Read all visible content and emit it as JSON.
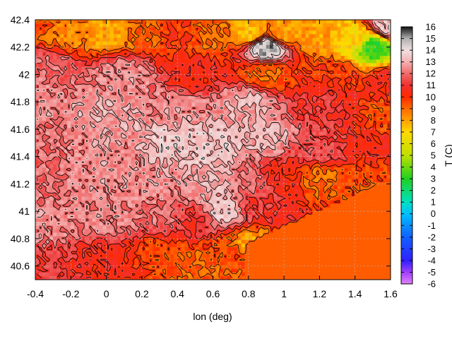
{
  "chart_data": {
    "type": "heatmap",
    "title": "",
    "xlabel": "lon (deg)",
    "colorbar_label": "T (C)",
    "xlim": [
      -0.4,
      1.6
    ],
    "ylim": [
      40.5,
      42.4
    ],
    "clim": [
      -6,
      16
    ],
    "x_ticks": [
      "-0.4",
      "-0.2",
      "0",
      "0.2",
      "0.4",
      "0.6",
      "0.8",
      "1",
      "1.2",
      "1.4",
      "1.6"
    ],
    "y_ticks": [
      "40.6",
      "40.8",
      "41",
      "41.2",
      "41.4",
      "41.6",
      "41.8",
      "42",
      "42.2",
      "42.4"
    ],
    "colorbar_ticks": [
      "16",
      "15",
      "14",
      "13",
      "12",
      "11",
      "10",
      "9",
      "8",
      "7",
      "6",
      "5",
      "4",
      "3",
      "2",
      "1",
      "0",
      "-1",
      "-2",
      "-3",
      "-4",
      "-5",
      "-6"
    ],
    "colormap": [
      {
        "t": -6,
        "color": "#e080ff"
      },
      {
        "t": -5,
        "color": "#a040ff"
      },
      {
        "t": -4,
        "color": "#3020ff"
      },
      {
        "t": -2,
        "color": "#1060ff"
      },
      {
        "t": 0,
        "color": "#00c0ff"
      },
      {
        "t": 1,
        "color": "#00e0c0"
      },
      {
        "t": 3,
        "color": "#20d020"
      },
      {
        "t": 5,
        "color": "#c0e000"
      },
      {
        "t": 7,
        "color": "#ffd800"
      },
      {
        "t": 8,
        "color": "#ffa000"
      },
      {
        "t": 9,
        "color": "#ff6a00"
      },
      {
        "t": 10,
        "color": "#ff2a00"
      },
      {
        "t": 11,
        "color": "#f03030"
      },
      {
        "t": 12,
        "color": "#f06a6a"
      },
      {
        "t": 13,
        "color": "#f5b0b0"
      },
      {
        "t": 14,
        "color": "#f0e0e0"
      },
      {
        "t": 15,
        "color": "#b0b0b0"
      },
      {
        "t": 16,
        "color": "#101010"
      }
    ],
    "grid": true,
    "sea_value": 9.2,
    "isotherm_levels": [
      9,
      10,
      11,
      12,
      13,
      14
    ],
    "temperature_field": [
      {
        "lon": -0.4,
        "lat": 42.4,
        "t": 9.5
      },
      {
        "lon": -0.2,
        "lat": 42.3,
        "t": 8.5
      },
      {
        "lon": 0.0,
        "lat": 42.3,
        "t": 8.0
      },
      {
        "lon": 0.2,
        "lat": 42.3,
        "t": 9.0
      },
      {
        "lon": 0.4,
        "lat": 42.3,
        "t": 10.0
      },
      {
        "lon": 0.6,
        "lat": 42.3,
        "t": 9.0
      },
      {
        "lon": 0.8,
        "lat": 42.3,
        "t": 7.5
      },
      {
        "lon": 0.9,
        "lat": 42.2,
        "t": 15.0
      },
      {
        "lon": 1.0,
        "lat": 42.3,
        "t": 8.0
      },
      {
        "lon": 1.2,
        "lat": 42.3,
        "t": 8.0
      },
      {
        "lon": 1.4,
        "lat": 42.25,
        "t": 7.0
      },
      {
        "lon": 1.5,
        "lat": 42.2,
        "t": 3.0
      },
      {
        "lon": 1.6,
        "lat": 42.35,
        "t": 13.5
      },
      {
        "lon": -0.3,
        "lat": 42.05,
        "t": 12.0
      },
      {
        "lon": 0.1,
        "lat": 42.0,
        "t": 12.5
      },
      {
        "lon": 0.5,
        "lat": 42.0,
        "t": 10.5
      },
      {
        "lon": 0.9,
        "lat": 42.0,
        "t": 9.0
      },
      {
        "lon": 1.3,
        "lat": 42.0,
        "t": 10.0
      },
      {
        "lon": 1.6,
        "lat": 41.95,
        "t": 10.5
      },
      {
        "lon": -0.4,
        "lat": 41.8,
        "t": 12.5
      },
      {
        "lon": 0.0,
        "lat": 41.7,
        "t": 13.0
      },
      {
        "lon": 0.4,
        "lat": 41.75,
        "t": 12.5
      },
      {
        "lon": 0.8,
        "lat": 41.8,
        "t": 13.0
      },
      {
        "lon": 1.2,
        "lat": 41.8,
        "t": 11.0
      },
      {
        "lon": 1.6,
        "lat": 41.7,
        "t": 9.5
      },
      {
        "lon": -0.4,
        "lat": 41.5,
        "t": 12.0
      },
      {
        "lon": 0.0,
        "lat": 41.45,
        "t": 12.5
      },
      {
        "lon": 0.4,
        "lat": 41.5,
        "t": 13.5
      },
      {
        "lon": 0.6,
        "lat": 41.45,
        "t": 13.5
      },
      {
        "lon": 0.9,
        "lat": 41.55,
        "t": 13.0
      },
      {
        "lon": 1.2,
        "lat": 41.45,
        "t": 11.5
      },
      {
        "lon": 1.5,
        "lat": 41.45,
        "t": 10.5
      },
      {
        "lon": -0.4,
        "lat": 41.2,
        "t": 12.0
      },
      {
        "lon": 0.0,
        "lat": 41.2,
        "t": 12.5
      },
      {
        "lon": 0.3,
        "lat": 41.2,
        "t": 12.5
      },
      {
        "lon": 0.6,
        "lat": 41.2,
        "t": 13.0
      },
      {
        "lon": 0.8,
        "lat": 41.2,
        "t": 12.0
      },
      {
        "lon": 1.0,
        "lat": 41.25,
        "t": 10.5
      },
      {
        "lon": 1.2,
        "lat": 41.25,
        "t": 9.0
      },
      {
        "lon": 1.5,
        "lat": 41.25,
        "t": 9.5
      },
      {
        "lon": -0.4,
        "lat": 40.9,
        "t": 12.5
      },
      {
        "lon": 0.0,
        "lat": 40.95,
        "t": 12.5
      },
      {
        "lon": 0.3,
        "lat": 40.95,
        "t": 12.0
      },
      {
        "lon": 0.5,
        "lat": 40.95,
        "t": 11.0
      },
      {
        "lon": 0.65,
        "lat": 41.0,
        "t": 13.5
      },
      {
        "lon": 0.85,
        "lat": 41.05,
        "t": 11.0
      },
      {
        "lon": -0.4,
        "lat": 40.6,
        "t": 11.0
      },
      {
        "lon": 0.0,
        "lat": 40.65,
        "t": 10.5
      },
      {
        "lon": 0.3,
        "lat": 40.7,
        "t": 9.5
      },
      {
        "lon": 0.5,
        "lat": 40.6,
        "t": 9.0
      },
      {
        "lon": 0.7,
        "lat": 40.7,
        "t": 9.5
      },
      {
        "lon": 0.8,
        "lat": 40.75,
        "t": 8.0
      }
    ]
  }
}
